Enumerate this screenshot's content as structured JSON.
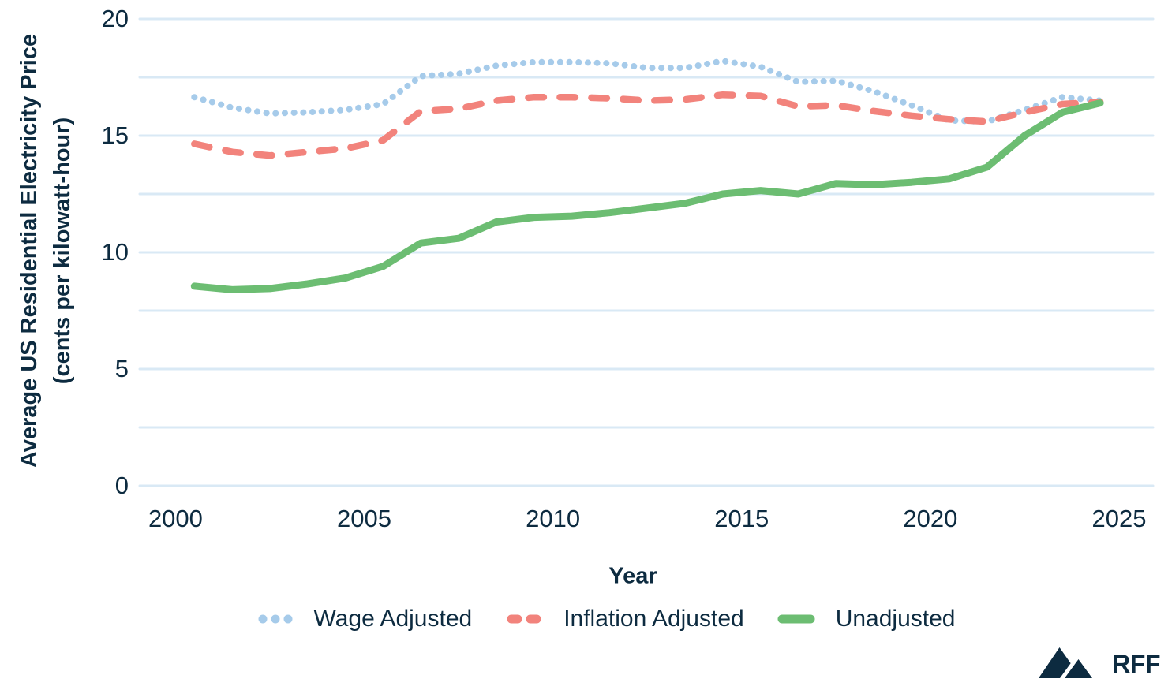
{
  "chart_data": {
    "type": "line",
    "title": "",
    "xlabel": "Year",
    "ylabel_line1": "Average US Residential Electricity Price",
    "ylabel_line2": "(cents per kilowatt-hour)",
    "x": [
      2000,
      2001,
      2002,
      2003,
      2004,
      2005,
      2006,
      2007,
      2008,
      2009,
      2010,
      2011,
      2012,
      2013,
      2014,
      2015,
      2016,
      2017,
      2018,
      2019,
      2020,
      2021,
      2022,
      2023,
      2024
    ],
    "x_ticks": [
      2000,
      2005,
      2010,
      2015,
      2020,
      2025
    ],
    "y_ticks": [
      0,
      5,
      10,
      15,
      20
    ],
    "xlim": [
      1999.05,
      2025.9
    ],
    "ylim": [
      0,
      20
    ],
    "grid_interval": 2.5,
    "grid_on": true,
    "grid_color": "#d9e9f5",
    "legend_position": "bottom",
    "series": [
      {
        "name": "Wage Adjusted",
        "style": "dotted",
        "color": "#a6cbea",
        "values": [
          16.65,
          16.2,
          15.95,
          16.0,
          16.1,
          16.35,
          17.55,
          17.65,
          18.0,
          18.15,
          18.15,
          18.1,
          17.9,
          17.9,
          18.2,
          17.95,
          17.3,
          17.35,
          16.9,
          16.3,
          15.65,
          15.6,
          16.1,
          16.65,
          16.5
        ]
      },
      {
        "name": "Inflation Adjusted",
        "style": "dashed",
        "color": "#f2837c",
        "values": [
          14.65,
          14.3,
          14.15,
          14.3,
          14.45,
          14.8,
          16.05,
          16.15,
          16.5,
          16.65,
          16.65,
          16.6,
          16.5,
          16.55,
          16.75,
          16.7,
          16.25,
          16.3,
          16.05,
          15.85,
          15.7,
          15.6,
          16.0,
          16.35,
          16.45
        ]
      },
      {
        "name": "Unadjusted",
        "style": "solid",
        "color": "#6cbd72",
        "values": [
          8.55,
          8.4,
          8.45,
          8.65,
          8.9,
          9.4,
          10.4,
          10.6,
          11.3,
          11.5,
          11.55,
          11.7,
          11.9,
          12.1,
          12.5,
          12.65,
          12.5,
          12.95,
          12.9,
          13.0,
          13.15,
          13.65,
          15.0,
          16.0,
          16.4
        ]
      }
    ]
  },
  "branding": {
    "logo_text": "RFF",
    "logo_color": "#0d2b40"
  },
  "theme": {
    "text_color": "#0d2b40",
    "background": "#ffffff"
  }
}
